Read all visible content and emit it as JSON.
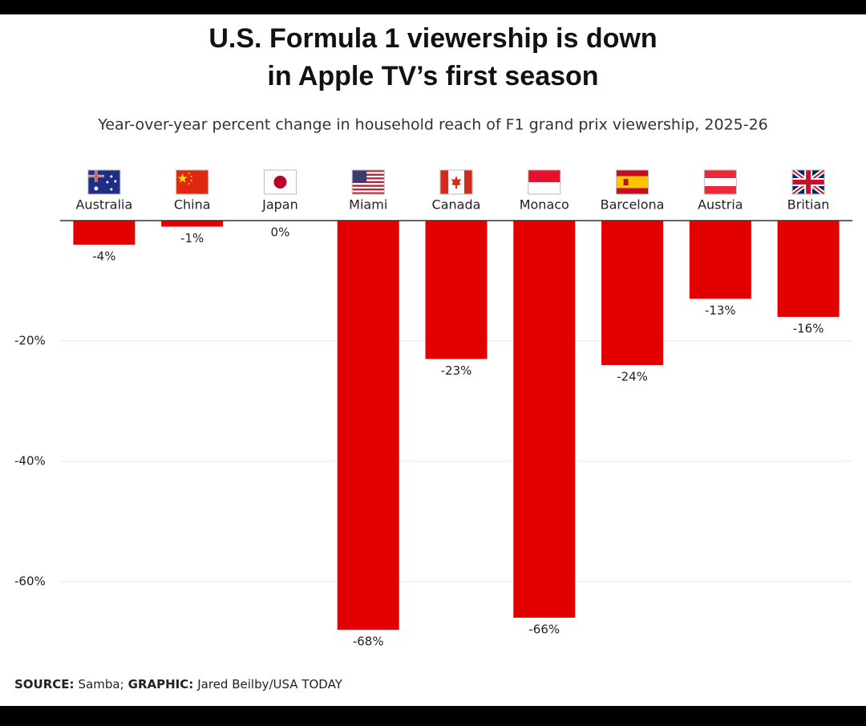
{
  "chart_data": {
    "type": "bar",
    "title": [
      "U.S. Formula 1 viewership is down",
      "in Apple TV’s first season"
    ],
    "subtitle": "Year-over-year percent change in household reach of F1 grand prix viewership, 2025-26",
    "categories": [
      "Australia",
      "China",
      "Japan",
      "Miami",
      "Canada",
      "Monaco",
      "Barcelona",
      "Austria",
      "Britian"
    ],
    "values": [
      -4,
      -1,
      0,
      -68,
      -23,
      -66,
      -24,
      -13,
      -16
    ],
    "value_labels": [
      "-4%",
      "-1%",
      "0%",
      "-68%",
      "-23%",
      "-66%",
      "-24%",
      "-13%",
      "-16%"
    ],
    "color": "#e30000",
    "ylim": [
      -70,
      0
    ],
    "yticks": [
      {
        "value": -20,
        "label": "-20%"
      },
      {
        "value": -40,
        "label": "-40%"
      },
      {
        "value": -60,
        "label": "-60%"
      }
    ],
    "grid": true,
    "source": {
      "source_label": "SOURCE:",
      "source": "Samba;",
      "graphic_label": "GRAPHIC:",
      "graphic": "Jared Beilby/USA TODAY"
    }
  }
}
